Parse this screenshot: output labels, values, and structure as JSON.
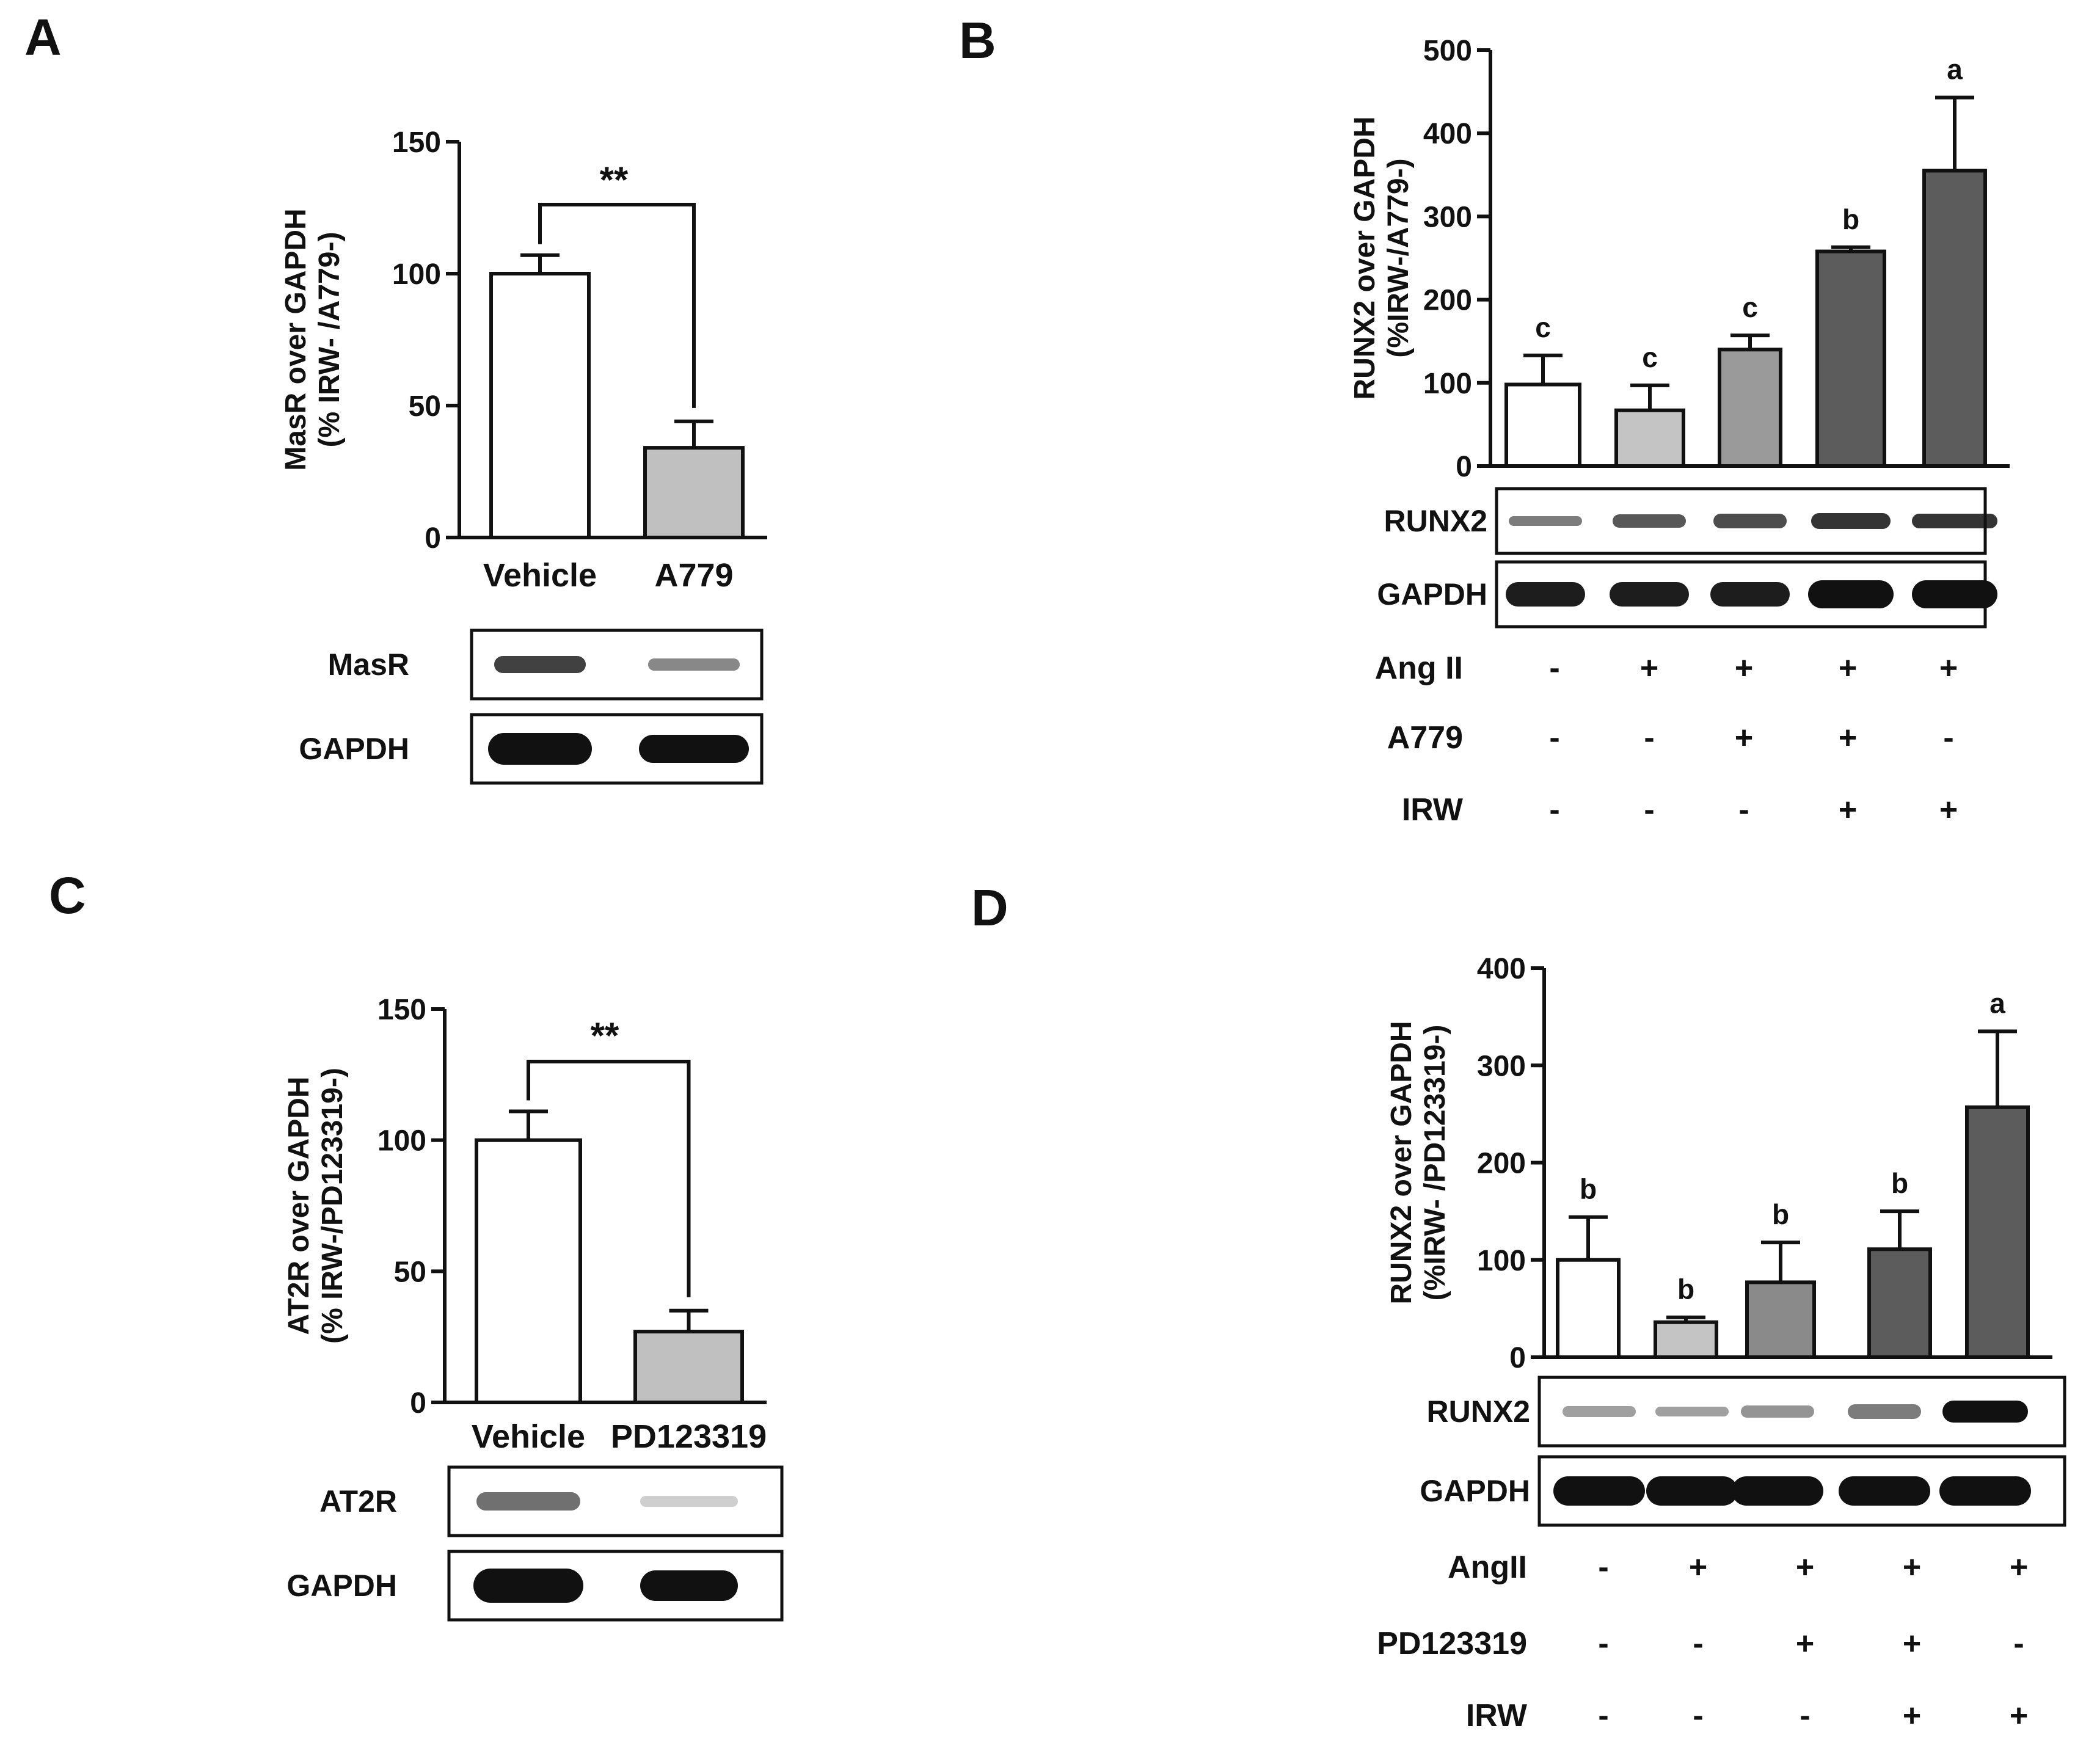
{
  "figure": {
    "panels": [
      "A",
      "B",
      "C",
      "D"
    ]
  },
  "chart_data": [
    {
      "id": "A",
      "type": "bar",
      "ylabel_line1": "MasR over GAPDH",
      "ylabel_line2": "(% IRW- /A779-)",
      "ylim": [
        0,
        150
      ],
      "yticks": [
        "0",
        "50",
        "100",
        "150"
      ],
      "categories": [
        "Vehicle",
        "A779"
      ],
      "values": [
        100,
        34
      ],
      "errors": [
        7,
        10
      ],
      "colors": [
        "#ffffff",
        "#c0c0c0"
      ],
      "significance": "**",
      "blots": [
        "MasR",
        "GAPDH"
      ]
    },
    {
      "id": "B",
      "type": "bar",
      "ylabel_line1": "RUNX2 over GAPDH",
      "ylabel_line2": "(%IRW-/A779-)",
      "ylim": [
        0,
        500
      ],
      "yticks": [
        "0",
        "100",
        "200",
        "300",
        "400",
        "500"
      ],
      "values": [
        98,
        67,
        140,
        258,
        355
      ],
      "errors": [
        35,
        30,
        17,
        5,
        88
      ],
      "letters": [
        "c",
        "c",
        "c",
        "b",
        "a"
      ],
      "colors": [
        "#ffffff",
        "#c4c4c4",
        "#9a9a9a",
        "#5c5c5c",
        "#5c5c5c"
      ],
      "blots": [
        "RUNX2",
        "GAPDH"
      ],
      "conditions": [
        {
          "name": "Ang II",
          "signs": [
            "-",
            "+",
            "+",
            "+",
            "+"
          ]
        },
        {
          "name": "A779",
          "signs": [
            "-",
            "-",
            "+",
            "+",
            "-"
          ]
        },
        {
          "name": "IRW",
          "signs": [
            "-",
            "-",
            "-",
            "+",
            "+"
          ]
        }
      ]
    },
    {
      "id": "C",
      "type": "bar",
      "ylabel_line1": "AT2R over GAPDH",
      "ylabel_line2": "(% IRW-/PD123319-)",
      "ylim": [
        0,
        150
      ],
      "yticks": [
        "0",
        "50",
        "100",
        "150"
      ],
      "categories": [
        "Vehicle",
        "PD123319"
      ],
      "values": [
        100,
        27
      ],
      "errors": [
        11,
        8
      ],
      "colors": [
        "#ffffff",
        "#c0c0c0"
      ],
      "significance": "**",
      "blots": [
        "AT2R",
        "GAPDH"
      ]
    },
    {
      "id": "D",
      "type": "bar",
      "ylabel_line1": "RUNX2 over GAPDH",
      "ylabel_line2": "(%IRW- /PD123319-)",
      "ylim": [
        0,
        400
      ],
      "yticks": [
        "0",
        "100",
        "200",
        "300",
        "400"
      ],
      "values": [
        100,
        36,
        77,
        111,
        257
      ],
      "errors": [
        44,
        5,
        41,
        39,
        78
      ],
      "letters": [
        "b",
        "b",
        "b",
        "b",
        "a"
      ],
      "colors": [
        "#ffffff",
        "#c4c4c4",
        "#8a8a8a",
        "#5c5c5c",
        "#5c5c5c"
      ],
      "blots": [
        "RUNX2",
        "GAPDH"
      ],
      "conditions": [
        {
          "name": "AngII",
          "signs": [
            "-",
            "+",
            "+",
            "+",
            "+"
          ]
        },
        {
          "name": "PD123319",
          "signs": [
            "-",
            "-",
            "+",
            "+",
            "-"
          ]
        },
        {
          "name": "IRW",
          "signs": [
            "-",
            "-",
            "-",
            "+",
            "+"
          ]
        }
      ]
    }
  ]
}
